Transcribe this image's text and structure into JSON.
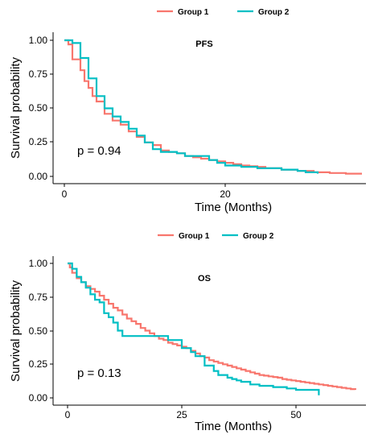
{
  "chart_data": [
    {
      "type": "line",
      "title": "PFS",
      "xlabel": "Time (Months)",
      "ylabel": "Survival probability",
      "xlim": [
        -2,
        37
      ],
      "ylim": [
        0,
        1
      ],
      "x_ticks": [
        0,
        20
      ],
      "y_ticks": [
        "0.00",
        "0.25",
        "0.50",
        "0.75",
        "1.00"
      ],
      "annotation": "p = 0.94",
      "legend": {
        "position": "top",
        "entries": [
          "Group 1",
          "Group 2"
        ]
      },
      "series": [
        {
          "name": "Group 1",
          "color": "#F8766D",
          "step": true,
          "x": [
            0,
            0.5,
            1,
            2,
            2.5,
            3,
            3.5,
            4,
            5,
            6,
            7,
            8,
            9,
            10,
            11,
            12,
            13,
            14,
            15,
            16,
            17,
            18,
            19,
            20,
            21,
            22,
            23,
            24,
            25,
            27,
            29,
            31,
            33,
            35,
            37
          ],
          "y": [
            1.0,
            0.97,
            0.86,
            0.78,
            0.7,
            0.65,
            0.59,
            0.55,
            0.46,
            0.41,
            0.38,
            0.33,
            0.29,
            0.25,
            0.23,
            0.19,
            0.18,
            0.17,
            0.15,
            0.14,
            0.13,
            0.12,
            0.11,
            0.1,
            0.09,
            0.08,
            0.075,
            0.07,
            0.06,
            0.05,
            0.04,
            0.03,
            0.025,
            0.02,
            0.02
          ]
        },
        {
          "name": "Group 2",
          "color": "#00BFC4",
          "step": true,
          "x": [
            0,
            1,
            2,
            3,
            4,
            5,
            6,
            7,
            8,
            9,
            10,
            11,
            12,
            14,
            15,
            18,
            19,
            20,
            22,
            24,
            27,
            29,
            30,
            31.5
          ],
          "y": [
            1.0,
            0.98,
            0.87,
            0.72,
            0.59,
            0.5,
            0.44,
            0.4,
            0.35,
            0.3,
            0.25,
            0.2,
            0.18,
            0.17,
            0.15,
            0.12,
            0.1,
            0.08,
            0.07,
            0.06,
            0.05,
            0.04,
            0.03,
            0.02
          ]
        }
      ]
    },
    {
      "type": "line",
      "title": "OS",
      "xlabel": "Time (Months)",
      "ylabel": "Survival probability",
      "xlim": [
        -2.5,
        63
      ],
      "ylim": [
        0,
        1
      ],
      "x_ticks": [
        0,
        25,
        50
      ],
      "y_ticks": [
        "0.00",
        "0.25",
        "0.50",
        "0.75",
        "1.00"
      ],
      "annotation": "p = 0.13",
      "legend": {
        "position": "top",
        "entries": [
          "Group 1",
          "Group 2"
        ]
      },
      "series": [
        {
          "name": "Group 1",
          "color": "#F8766D",
          "step": true,
          "x": [
            0,
            0.5,
            1,
            2,
            3,
            4,
            5,
            6,
            7,
            8,
            9,
            10,
            11,
            12,
            13,
            14,
            15,
            16,
            17,
            18,
            19,
            20,
            21,
            22,
            23,
            24,
            25,
            26,
            27,
            28,
            29,
            30,
            31,
            32,
            33,
            34,
            35,
            36,
            37,
            38,
            39,
            40,
            41,
            42,
            43,
            44,
            45,
            46,
            47,
            48,
            49,
            50,
            51,
            52,
            53,
            54,
            55,
            56,
            57,
            58,
            59,
            60,
            61,
            62,
            63
          ],
          "y": [
            1.0,
            0.97,
            0.93,
            0.89,
            0.86,
            0.83,
            0.81,
            0.79,
            0.76,
            0.73,
            0.7,
            0.67,
            0.65,
            0.62,
            0.59,
            0.57,
            0.55,
            0.52,
            0.5,
            0.48,
            0.46,
            0.44,
            0.43,
            0.41,
            0.4,
            0.39,
            0.38,
            0.37,
            0.35,
            0.33,
            0.31,
            0.3,
            0.28,
            0.27,
            0.26,
            0.25,
            0.24,
            0.23,
            0.22,
            0.21,
            0.2,
            0.19,
            0.18,
            0.17,
            0.165,
            0.16,
            0.155,
            0.15,
            0.14,
            0.135,
            0.13,
            0.125,
            0.12,
            0.115,
            0.11,
            0.105,
            0.1,
            0.095,
            0.09,
            0.085,
            0.08,
            0.075,
            0.07,
            0.065,
            0.06
          ]
        },
        {
          "name": "Group 2",
          "color": "#00BFC4",
          "step": true,
          "x": [
            0,
            1,
            2,
            3,
            4,
            5,
            6,
            7,
            8,
            9,
            10,
            11,
            12,
            14,
            15,
            20,
            22,
            25,
            27,
            28,
            30,
            32,
            33,
            35,
            36,
            37,
            38,
            40,
            42,
            45,
            48,
            50,
            55
          ],
          "y": [
            1.0,
            0.96,
            0.9,
            0.86,
            0.82,
            0.77,
            0.73,
            0.71,
            0.63,
            0.6,
            0.56,
            0.5,
            0.46,
            0.46,
            0.46,
            0.46,
            0.43,
            0.37,
            0.34,
            0.31,
            0.24,
            0.2,
            0.17,
            0.15,
            0.14,
            0.13,
            0.12,
            0.1,
            0.09,
            0.08,
            0.07,
            0.06,
            0.02
          ]
        }
      ]
    }
  ]
}
